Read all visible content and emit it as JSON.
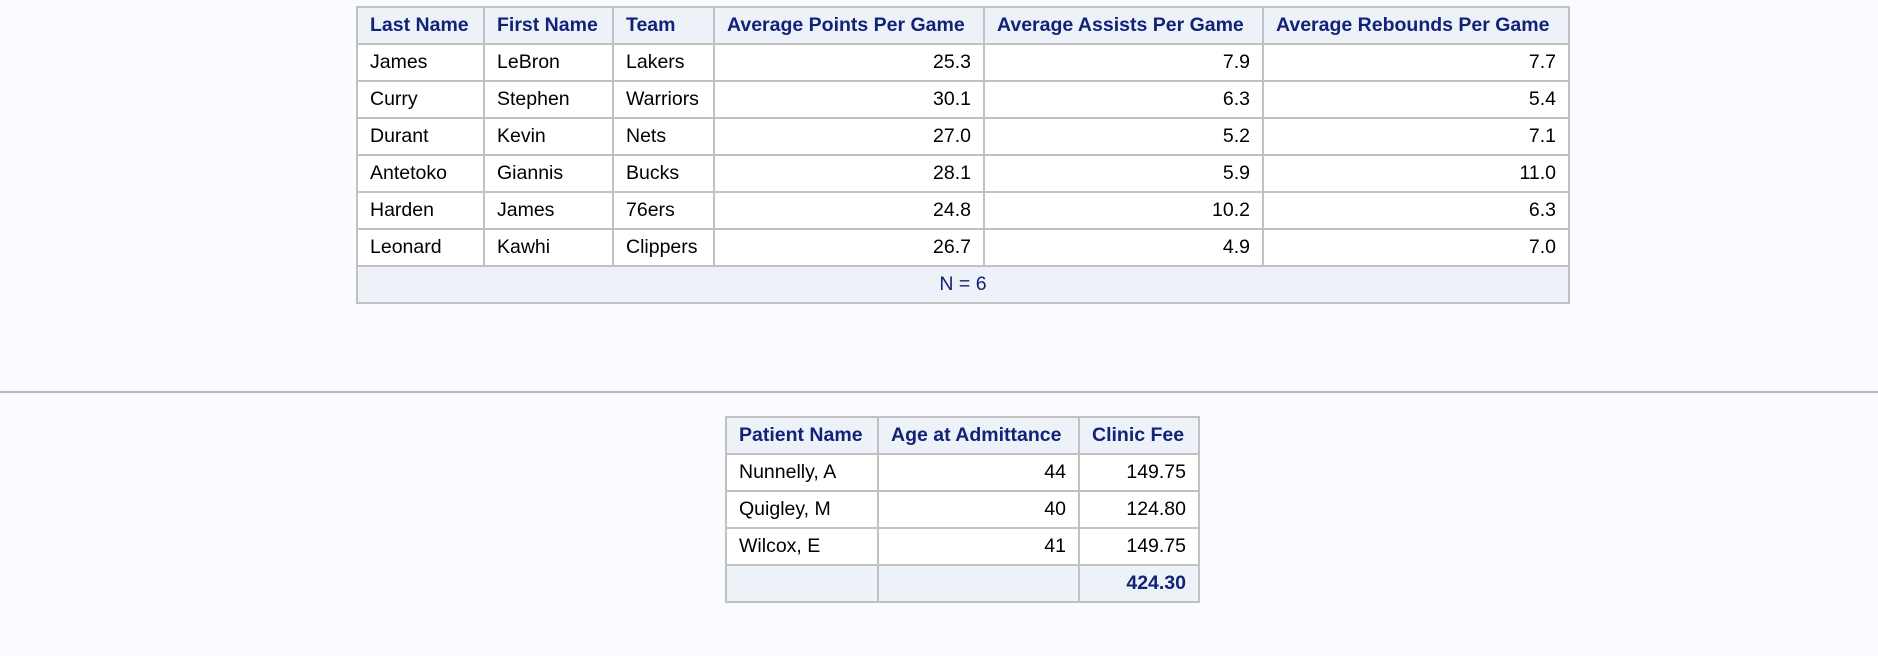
{
  "nba_table": {
    "headers": [
      "Last Name",
      "First Name",
      "Team",
      "Average Points Per Game",
      "Average Assists Per Game",
      "Average Rebounds Per Game"
    ],
    "rows": [
      [
        "James",
        "LeBron",
        "Lakers",
        "25.3",
        "7.9",
        "7.7"
      ],
      [
        "Curry",
        "Stephen",
        "Warriors",
        "30.1",
        "6.3",
        "5.4"
      ],
      [
        "Durant",
        "Kevin",
        "Nets",
        "27.0",
        "5.2",
        "7.1"
      ],
      [
        "Antetoko",
        "Giannis",
        "Bucks",
        "28.1",
        "5.9",
        "11.0"
      ],
      [
        "Harden",
        "James",
        "76ers",
        "24.8",
        "10.2",
        "6.3"
      ],
      [
        "Leonard",
        "Kawhi",
        "Clippers",
        "26.7",
        "4.9",
        "7.0"
      ]
    ],
    "footer": "N = 6"
  },
  "patient_table": {
    "headers": [
      "Patient Name",
      "Age at Admittance",
      "Clinic Fee"
    ],
    "rows": [
      [
        "Nunnelly, A",
        "44",
        "149.75"
      ],
      [
        "Quigley, M",
        "40",
        "124.80"
      ],
      [
        "Wilcox, E",
        "41",
        "149.75"
      ]
    ],
    "total": "424.30"
  },
  "colors": {
    "header_text": "#112277",
    "header_background": "#edf2f9",
    "page_background": "#fafbfe",
    "border": "#c1c1c1"
  }
}
